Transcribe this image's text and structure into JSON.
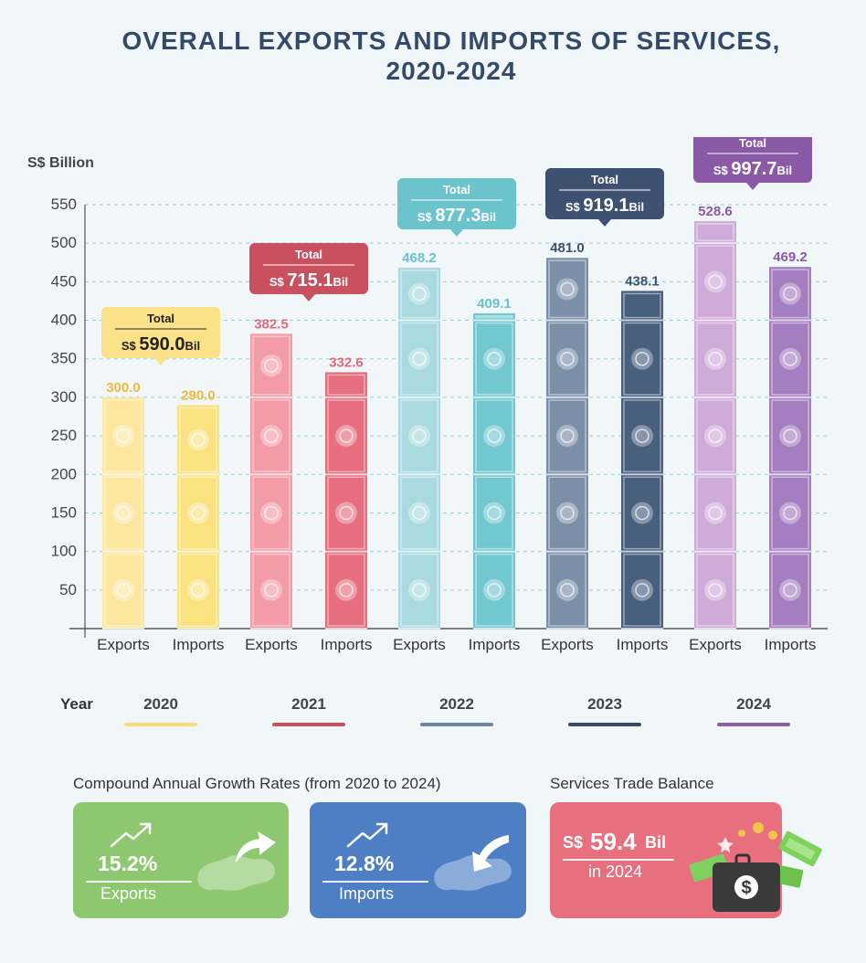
{
  "title_line1": "OVERALL EXPORTS AND IMPORTS OF SERVICES,",
  "title_line2": "2020-2024",
  "chart_data": {
    "type": "bar",
    "ylabel": "S$ Billion",
    "ylim": [
      0,
      550
    ],
    "yticks": [
      50,
      100,
      150,
      200,
      250,
      300,
      350,
      400,
      450,
      500,
      550
    ],
    "grid": true,
    "categories": [
      "Exports",
      "Imports",
      "Exports",
      "Imports",
      "Exports",
      "Imports",
      "Exports",
      "Imports",
      "Exports",
      "Imports"
    ],
    "years": [
      "2020",
      "2021",
      "2022",
      "2023",
      "2024"
    ],
    "values": [
      300.0,
      290.0,
      382.5,
      332.6,
      468.2,
      409.1,
      481.0,
      438.1,
      528.6,
      469.2
    ],
    "value_labels": [
      "300.0",
      "290.0",
      "382.5",
      "332.6",
      "468.2",
      "409.1",
      "481.0",
      "438.1",
      "528.6",
      "469.2"
    ],
    "totals": [
      {
        "year": "2020",
        "label": "Total",
        "prefix": "S$",
        "value": "590.0",
        "suffix": "Bil"
      },
      {
        "year": "2021",
        "label": "Total",
        "prefix": "S$",
        "value": "715.1",
        "suffix": "Bil"
      },
      {
        "year": "2022",
        "label": "Total",
        "prefix": "S$",
        "value": "877.3",
        "suffix": "Bil"
      },
      {
        "year": "2023",
        "label": "Total",
        "prefix": "S$",
        "value": "919.1",
        "suffix": "Bil"
      },
      {
        "year": "2024",
        "label": "Total",
        "prefix": "S$",
        "value": "997.7",
        "suffix": "Bil"
      }
    ],
    "colors": {
      "2020": {
        "exports": "#fde79f",
        "imports": "#fbe281",
        "label": "#f2b93a",
        "legend": "#f6dc78"
      },
      "2021": {
        "exports": "#f39ba6",
        "imports": "#e66e7e",
        "label": "#e06a7a",
        "legend": "#c94f5f"
      },
      "2022": {
        "exports": "#a8dadf",
        "imports": "#72c8d0",
        "label": "#69c3cc",
        "legend": "#6f86a3"
      },
      "2023": {
        "exports": "#7b8fa9",
        "imports": "#485f7e",
        "label": "#3d5170",
        "legend": "#374a66"
      },
      "2024": {
        "exports": "#cfabd9",
        "imports": "#a47ec0",
        "label": "#8a5aa8",
        "legend": "#8c5ea8"
      }
    },
    "callout_colors": {
      "2020": "#fbe289",
      "2021": "#c9505e",
      "2022": "#6bc4cc",
      "2023": "#3e5170",
      "2024": "#8b5aa6"
    },
    "callout_text": {
      "2020": "#222222",
      "2021": "#ffffff",
      "2022": "#ffffff",
      "2023": "#ffffff",
      "2024": "#ffffff"
    }
  },
  "legend": {
    "label": "Year",
    "items": [
      "2020",
      "2021",
      "2022",
      "2023",
      "2024"
    ]
  },
  "cagr": {
    "title": "Compound Annual Growth Rates (from 2020 to 2024)",
    "exports": {
      "value": "15.2%",
      "label": "Exports",
      "color": "#8dc870"
    },
    "imports": {
      "value": "12.8%",
      "label": "Imports",
      "color": "#4e7fc4"
    }
  },
  "balance": {
    "title": "Services Trade Balance",
    "prefix": "S$",
    "value": "59.4",
    "suffix": "Bil",
    "note": "in 2024",
    "color": "#e86f7e"
  }
}
